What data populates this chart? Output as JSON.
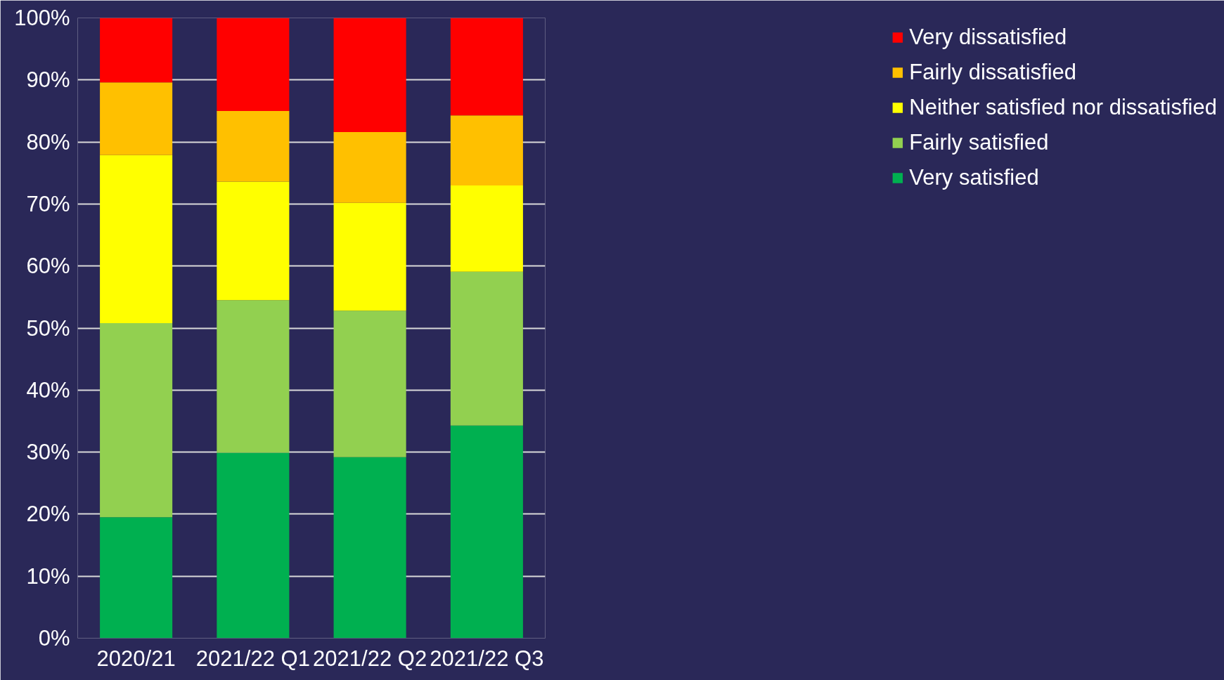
{
  "chart_data": {
    "type": "bar",
    "stacked": true,
    "categories": [
      "2020/21",
      "2021/22 Q1",
      "2021/22 Q2",
      "2021/22 Q3"
    ],
    "series": [
      {
        "name": "Very satisfied",
        "color": "#00b050",
        "values": [
          19.5,
          29.9,
          29.2,
          34.3
        ]
      },
      {
        "name": "Fairly satisfied",
        "color": "#92d050",
        "values": [
          31.3,
          24.6,
          23.6,
          24.8
        ]
      },
      {
        "name": "Neither satisfied nor dissatisfied",
        "color": "#ffff00",
        "values": [
          27.1,
          19.1,
          17.4,
          13.9
        ]
      },
      {
        "name": "Fairly dissatisfied",
        "color": "#ffc000",
        "values": [
          11.7,
          11.4,
          11.4,
          11.3
        ]
      },
      {
        "name": "Very dissatisfied",
        "color": "#ff0000",
        "values": [
          10.4,
          15.0,
          18.4,
          15.7
        ]
      }
    ],
    "ylim": [
      0,
      100
    ],
    "yticks": [
      {
        "value": 0,
        "label": "0%"
      },
      {
        "value": 10,
        "label": "10%"
      },
      {
        "value": 20,
        "label": "20%"
      },
      {
        "value": 30,
        "label": "30%"
      },
      {
        "value": 40,
        "label": "40%"
      },
      {
        "value": 50,
        "label": "50%"
      },
      {
        "value": 60,
        "label": "60%"
      },
      {
        "value": 70,
        "label": "70%"
      },
      {
        "value": 80,
        "label": "80%"
      },
      {
        "value": 90,
        "label": "90%"
      },
      {
        "value": 100,
        "label": "100%"
      }
    ],
    "grid": "y",
    "legend": "right"
  }
}
